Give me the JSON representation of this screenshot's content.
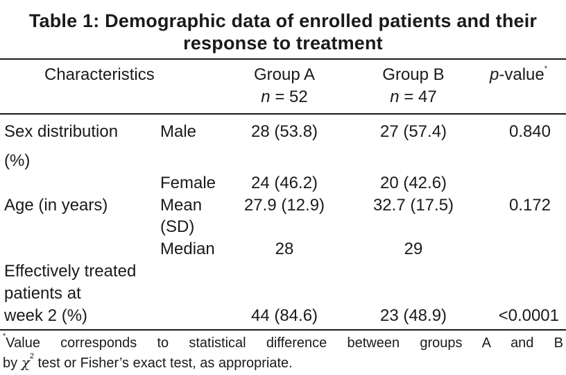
{
  "table": {
    "title_line1": "Table 1: Demographic data of enrolled patients and their",
    "title_line2": "response to treatment",
    "header": {
      "characteristics": "Characteristics",
      "group_a": "Group A",
      "group_a_n_sym": "n",
      "group_a_n_val": "= 52",
      "group_b": "Group B",
      "group_b_n_sym": "n",
      "group_b_n_val": "= 47",
      "pvalue_p": "p",
      "pvalue_rest": "-value",
      "pvalue_mark": "*"
    },
    "rows": {
      "sex_label_1": "Sex distribution",
      "sex_label_2": "(%)",
      "male": "Male",
      "male_a": "28 (53.8)",
      "male_b": "27 (57.4)",
      "sex_p": "0.840",
      "female": "Female",
      "female_a": "24 (46.2)",
      "female_b": "20 (42.6)",
      "age_label": "Age (in years)",
      "mean_1": "Mean",
      "mean_2": "(SD)",
      "mean_a": "27.9 (12.9)",
      "mean_b": "32.7 (17.5)",
      "age_p": "0.172",
      "median": "Median",
      "median_a": "28",
      "median_b": "29",
      "eff_1": "Effectively treated",
      "eff_2": "patients at",
      "eff_3": "week 2 (%)",
      "eff_a": "44 (84.6)",
      "eff_b": "23 (48.9)",
      "eff_p": "<0.0001"
    },
    "footnote": {
      "mark": "*",
      "line1": "Value corresponds to statistical difference between groups A and B",
      "line2_pre": "by",
      "chi": "χ",
      "chi_sup": "2",
      "line2_post": "test or Fisher’s exact test, as appropriate."
    }
  }
}
